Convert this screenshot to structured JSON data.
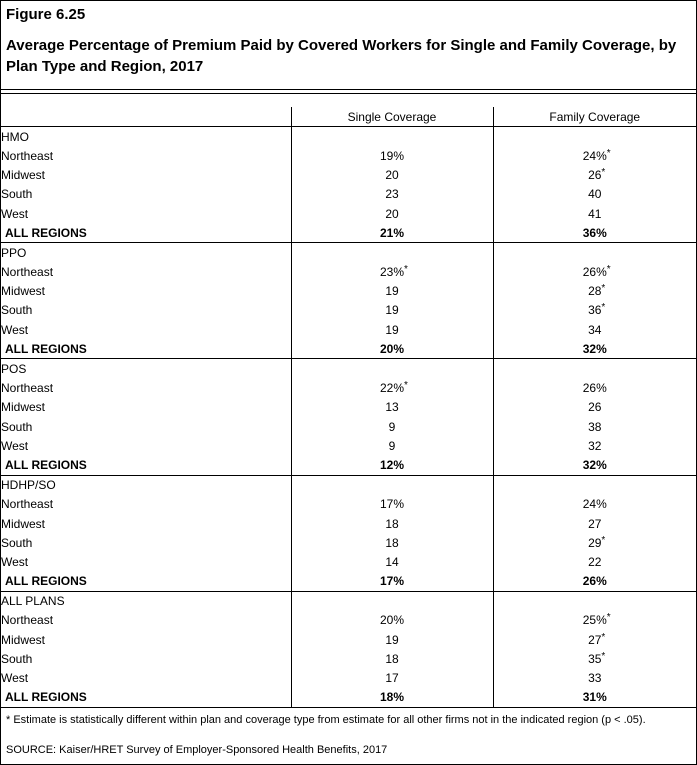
{
  "figure_label": "Figure 6.25",
  "title": "Average Percentage of Premium Paid by Covered Workers for Single and Family Coverage, by Plan Type and Region, 2017",
  "columns": [
    "Single Coverage",
    "Family Coverage"
  ],
  "groups": [
    {
      "plan": "HMO",
      "rows": [
        {
          "region": "Northeast",
          "single": "19%",
          "single_sig": false,
          "family": "24%",
          "family_sig": true
        },
        {
          "region": "Midwest",
          "single": "20",
          "single_sig": false,
          "family": "26",
          "family_sig": true
        },
        {
          "region": "South",
          "single": "23",
          "single_sig": false,
          "family": "40",
          "family_sig": false
        },
        {
          "region": "West",
          "single": "20",
          "single_sig": false,
          "family": "41",
          "family_sig": false
        }
      ],
      "total": {
        "region": "ALL REGIONS",
        "single": "21%",
        "family": "36%"
      }
    },
    {
      "plan": "PPO",
      "rows": [
        {
          "region": "Northeast",
          "single": "23%",
          "single_sig": true,
          "family": "26%",
          "family_sig": true
        },
        {
          "region": "Midwest",
          "single": "19",
          "single_sig": false,
          "family": "28",
          "family_sig": true
        },
        {
          "region": "South",
          "single": "19",
          "single_sig": false,
          "family": "36",
          "family_sig": true
        },
        {
          "region": "West",
          "single": "19",
          "single_sig": false,
          "family": "34",
          "family_sig": false
        }
      ],
      "total": {
        "region": "ALL REGIONS",
        "single": "20%",
        "family": "32%"
      }
    },
    {
      "plan": "POS",
      "rows": [
        {
          "region": "Northeast",
          "single": "22%",
          "single_sig": true,
          "family": "26%",
          "family_sig": false
        },
        {
          "region": "Midwest",
          "single": "13",
          "single_sig": false,
          "family": "26",
          "family_sig": false
        },
        {
          "region": "South",
          "single": "9",
          "single_sig": false,
          "family": "38",
          "family_sig": false
        },
        {
          "region": "West",
          "single": "9",
          "single_sig": false,
          "family": "32",
          "family_sig": false
        }
      ],
      "total": {
        "region": "ALL REGIONS",
        "single": "12%",
        "family": "32%"
      }
    },
    {
      "plan": "HDHP/SO",
      "rows": [
        {
          "region": "Northeast",
          "single": "17%",
          "single_sig": false,
          "family": "24%",
          "family_sig": false
        },
        {
          "region": "Midwest",
          "single": "18",
          "single_sig": false,
          "family": "27",
          "family_sig": false
        },
        {
          "region": "South",
          "single": "18",
          "single_sig": false,
          "family": "29",
          "family_sig": true
        },
        {
          "region": "West",
          "single": "14",
          "single_sig": false,
          "family": "22",
          "family_sig": false
        }
      ],
      "total": {
        "region": "ALL REGIONS",
        "single": "17%",
        "family": "26%"
      }
    },
    {
      "plan": "ALL PLANS",
      "rows": [
        {
          "region": "Northeast",
          "single": "20%",
          "single_sig": false,
          "family": "25%",
          "family_sig": true
        },
        {
          "region": "Midwest",
          "single": "19",
          "single_sig": false,
          "family": "27",
          "family_sig": true
        },
        {
          "region": "South",
          "single": "18",
          "single_sig": false,
          "family": "35",
          "family_sig": true
        },
        {
          "region": "West",
          "single": "17",
          "single_sig": false,
          "family": "33",
          "family_sig": false
        }
      ],
      "total": {
        "region": "ALL REGIONS",
        "single": "18%",
        "family": "31%"
      }
    }
  ],
  "sig_marker": "*",
  "footnote": "* Estimate is statistically different within plan and coverage type from estimate for all other firms not in the indicated region (p < .05).",
  "source": "SOURCE: Kaiser/HRET Survey of Employer-Sponsored Health Benefits, 2017"
}
